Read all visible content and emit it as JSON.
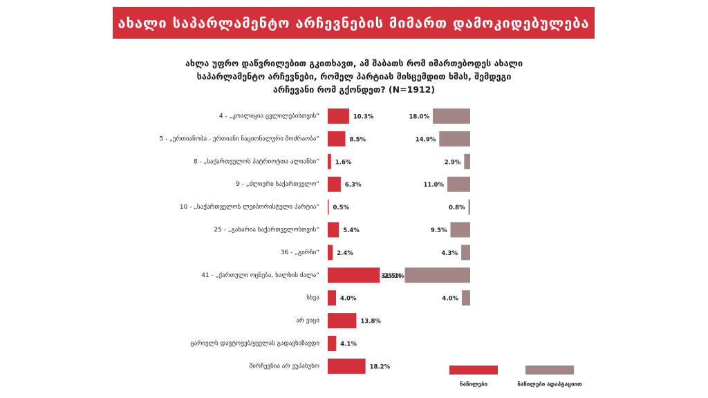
{
  "chart_data": {
    "type": "bar",
    "title": "ახალი საპარლამენტო არჩევნების მიმართ დამოკიდებულება",
    "subtitle": "ახლა უფრო დაწვრილებით გკითხავთ, ამ შაბათს რომ იმართებოდეს ახალი საპარლამენტო არჩევნები, რომელ პარტიას მისცემდით ხმას, შემდეგი არჩევანი რომ გქონდეთ? (N=1912)",
    "categories": [
      "4 - „კოალიცია ცვლილებისთვის“",
      "5 - „ერთიანობა - ერთიანი ნაციონალური მოძრაობა“",
      "8 - „საქართველოს პატრიოტთა ალიანსი“",
      "9 - „ძლიერი საქართველო“",
      "10 - „საქართველოს ლეიბორისტული პარტია“",
      "25 - „გახარია საქართველოსთვის“",
      "36 - „გირჩი“",
      "41 - „ქართული ოცნება, ხალხის ძალა“",
      "სხვა",
      "არ ვიცი",
      "ცარიელს დავტოვებ/ყველას გადავხაზავდი",
      "მირჩევნია არ ვუპასუხო"
    ],
    "series": [
      {
        "name": "ნაწილები",
        "color": "#d2313c",
        "values": [
          10.3,
          8.5,
          1.6,
          6.3,
          0.5,
          5.4,
          2.4,
          25.1,
          4.0,
          13.8,
          4.1,
          18.2
        ],
        "value_labels": [
          "10.3%",
          "8.5%",
          "1.6%",
          "6.3%",
          "0.5%",
          "5.4%",
          "2.4%",
          "25.1%",
          "4.0%",
          "13.8%",
          "4.1%",
          "18.2%"
        ]
      },
      {
        "name": "ნაწილები ადაპტაციით",
        "color": "#a28585",
        "values": [
          18.0,
          14.9,
          2.9,
          11.0,
          0.8,
          9.5,
          4.3,
          31.5,
          4.0,
          null,
          null,
          null
        ],
        "value_labels": [
          "18.0%",
          "14.9%",
          "2.9%",
          "11.0%",
          "0.8%",
          "9.5%",
          "4.3%",
          "31.5%",
          "4.0%",
          null,
          null,
          null
        ]
      }
    ]
  }
}
